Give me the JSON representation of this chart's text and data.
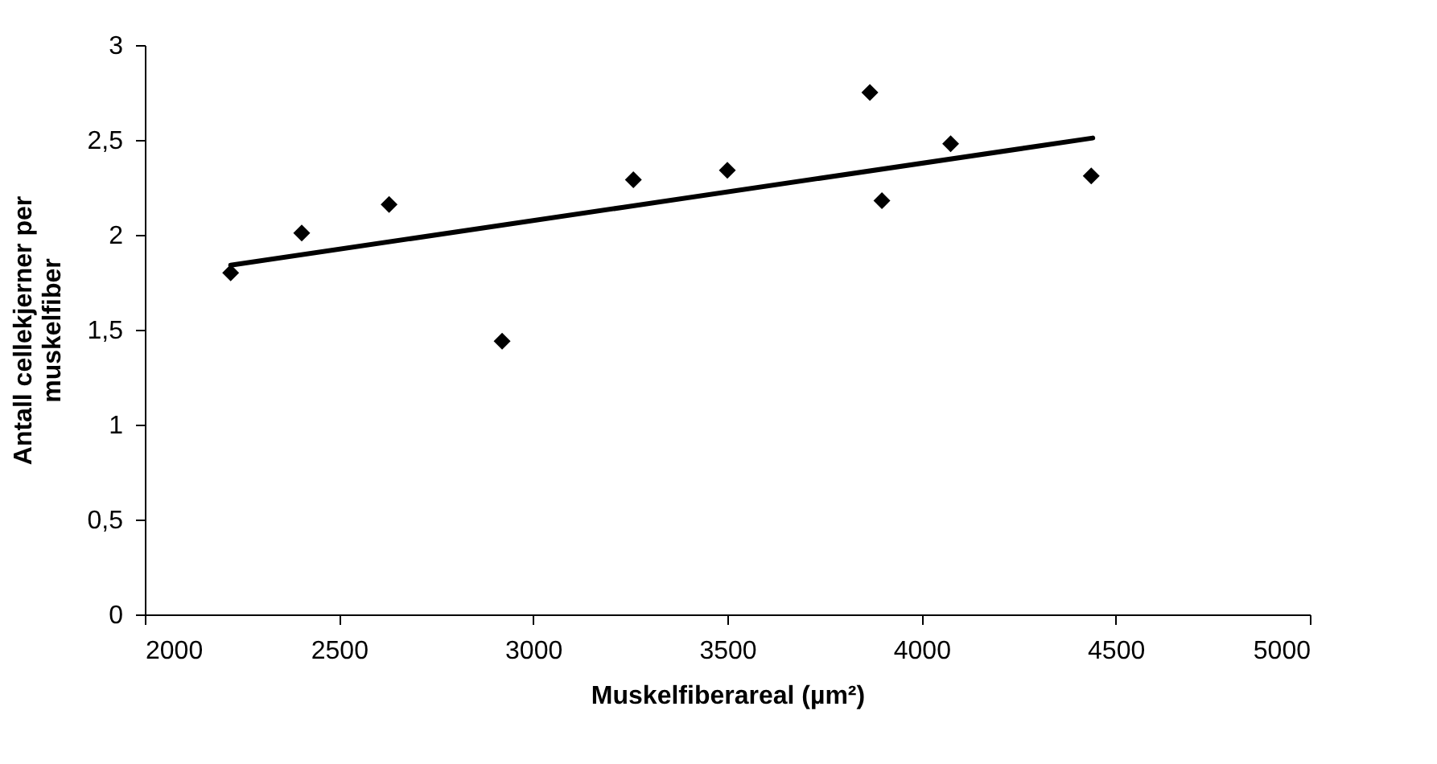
{
  "chart_data": {
    "type": "scatter",
    "xlabel": "Muskelfiberareal (µm²)",
    "ylabel": "Antall cellekjerner per muskelfiber",
    "x": [
      2221,
      2404,
      2629,
      2920,
      3258,
      3500,
      3867,
      3898,
      4075,
      4437
    ],
    "series": [
      {
        "color": "#000000",
        "marker": "diamond",
        "values": [
          1.8,
          2.01,
          2.16,
          1.44,
          2.29,
          2.34,
          2.75,
          2.18,
          2.48,
          2.31
        ]
      },
      {
        "type": "line",
        "color": "#000000",
        "x": [
          2221,
          4441
        ],
        "values": [
          1.84,
          2.51
        ]
      }
    ],
    "xlim": [
      2000,
      5000
    ],
    "xticks": [
      2000,
      2500,
      3000,
      3500,
      4000,
      4500,
      5000
    ],
    "ylim": [
      0,
      3
    ],
    "yticks": [
      0,
      {
        "value": 0.5,
        "label": "0,5"
      },
      1,
      {
        "value": 1.5,
        "label": "1,5"
      },
      2,
      {
        "value": 2.5,
        "label": "2,5"
      },
      3
    ],
    "grid": false
  }
}
